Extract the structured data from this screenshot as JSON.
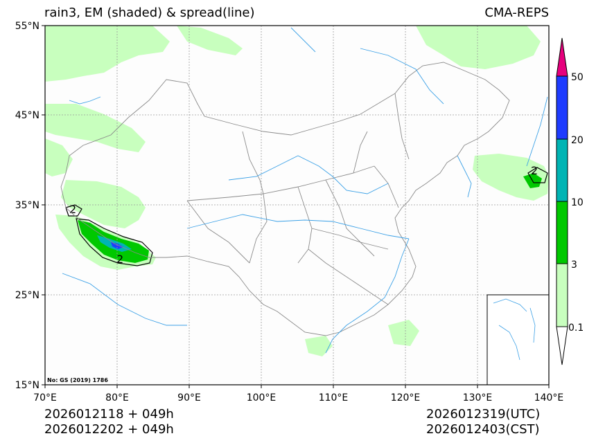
{
  "header": {
    "title_left": "rain3, EM (shaded) & spread(line)",
    "title_right": "CMA-REPS"
  },
  "map": {
    "lat_labels": [
      "55°N",
      "45°N",
      "35°N",
      "25°N",
      "15°N"
    ],
    "lon_labels": [
      "70°E",
      "80°E",
      "90°E",
      "100°E",
      "110°E",
      "120°E",
      "130°E",
      "140°E"
    ],
    "spread_label": "2",
    "review_number": "No: GS (2019) 1786",
    "colors": {
      "land_light_green": "#c8ffbe",
      "green": "#00c800",
      "cyan": "#00b4b4",
      "blue": "#1e3cff",
      "magenta": "#e6007d",
      "river": "#3aa0e6",
      "border": "#888888"
    }
  },
  "colorbar": {
    "labels": [
      "50",
      "20",
      "10",
      "3",
      "0.1"
    ],
    "levels": [
      0.1,
      3,
      10,
      20,
      50
    ]
  },
  "footer": {
    "init_utc": "2026012118  +  049h",
    "init_cst": "2026012202  +  049h",
    "valid_utc": "2026012319(UTC)",
    "valid_cst": "2026012403(CST)"
  }
}
